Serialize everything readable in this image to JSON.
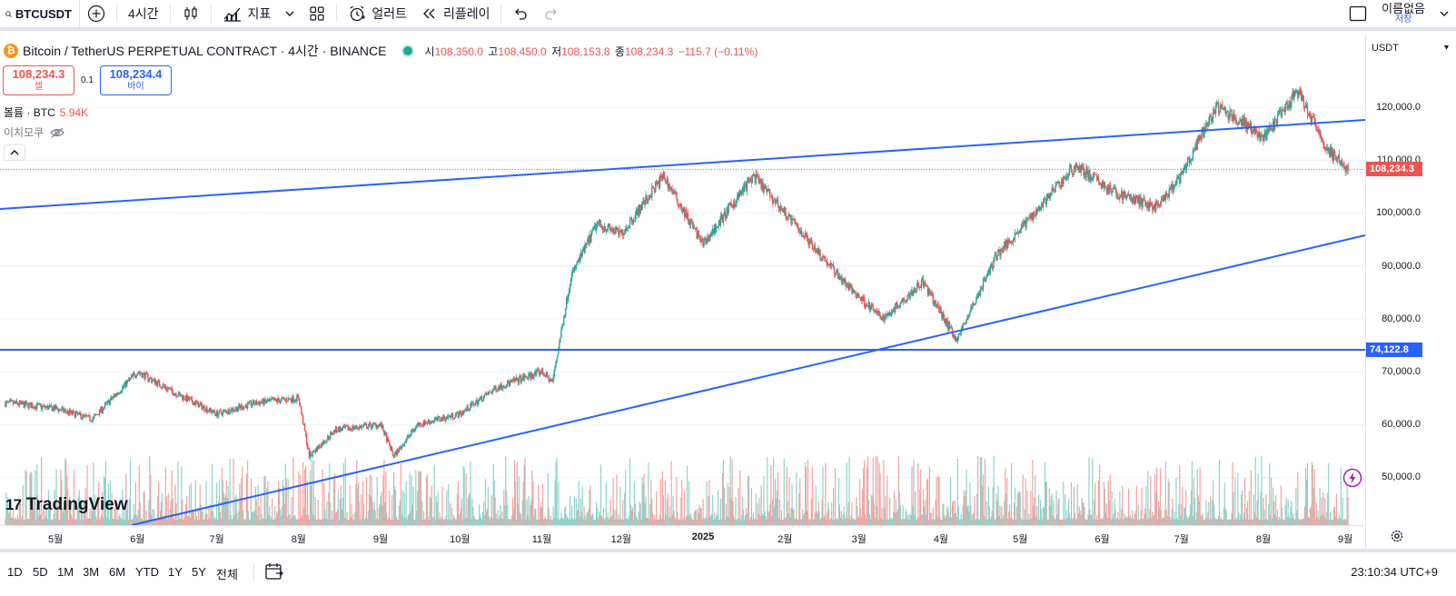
{
  "toolbar": {
    "symbol": "BTCUSDT",
    "interval": "4시간",
    "indicators": "지표",
    "alert": "얼러트",
    "replay": "리플레이",
    "layout_name": "이름없음",
    "save": "저장"
  },
  "header": {
    "title": "Bitcoin / TetherUS PERPETUAL CONTRACT · 4시간 · BINANCE",
    "open_label": "시",
    "open": "108,350.0",
    "high_label": "고",
    "high": "108,450.0",
    "low_label": "저",
    "low": "108,153.8",
    "close_label": "종",
    "close": "108,234.3",
    "change": "−115.7 (−0.11%)"
  },
  "trade": {
    "sell_price": "108,234.3",
    "sell_label": "셀",
    "spread": "0.1",
    "buy_price": "108,234.4",
    "buy_label": "바이"
  },
  "volume_legend": {
    "label": "볼륨 · BTC",
    "value": "5.94K"
  },
  "ichimoku_label": "이치모쿠",
  "logo_text": "TradingView",
  "price_axis": {
    "unit": "USDT",
    "ticks": [
      "120,000.0",
      "110,000.0",
      "100,000.0",
      "90,000.0",
      "80,000.0",
      "70,000.0",
      "60,000.0",
      "50,000.0"
    ],
    "last_price_tag": "108,234.3",
    "line_price_tag": "74,122.8"
  },
  "time_axis": {
    "ticks": [
      "5월",
      "6월",
      "7월",
      "8월",
      "9월",
      "10월",
      "11월",
      "12월",
      "2025",
      "2월",
      "3월",
      "4월",
      "5월",
      "6월",
      "7월",
      "8월",
      "9월"
    ]
  },
  "bottom_bar": {
    "ranges": [
      "1D",
      "5D",
      "1M",
      "3M",
      "6M",
      "YTD",
      "1Y",
      "5Y",
      "전체"
    ],
    "clock": "23:10:34 UTC+9"
  },
  "colors": {
    "up": "#26a69a",
    "down": "#ef5350",
    "trendline": "#2962ff",
    "up_volume": "#8fd3cb",
    "down_volume": "#f4a3a1"
  },
  "chart_data": {
    "type": "candlestick",
    "series_name": "BTCUSDT",
    "interval": "4시간",
    "ylim": [
      40000,
      127000
    ],
    "last_price": 108234.3,
    "horizontal_line": 74122.8,
    "x": [
      "2024-04-15",
      "2024-05-01",
      "2024-05-15",
      "2024-06-01",
      "2024-06-15",
      "2024-07-01",
      "2024-07-15",
      "2024-08-01",
      "2024-08-05",
      "2024-08-15",
      "2024-09-01",
      "2024-09-06",
      "2024-09-15",
      "2024-10-01",
      "2024-10-15",
      "2024-11-01",
      "2024-11-05",
      "2024-11-12",
      "2024-11-22",
      "2024-12-01",
      "2024-12-17",
      "2025-01-01",
      "2025-01-20",
      "2025-02-01",
      "2025-02-25",
      "2025-03-10",
      "2025-03-25",
      "2025-04-07",
      "2025-04-22",
      "2025-05-01",
      "2025-05-22",
      "2025-06-05",
      "2025-06-22",
      "2025-07-01",
      "2025-07-14",
      "2025-07-25",
      "2025-08-01",
      "2025-08-14",
      "2025-08-25",
      "2025-09-02"
    ],
    "y": [
      64000,
      63000,
      61000,
      70000,
      66000,
      62000,
      64000,
      65000,
      54000,
      59000,
      60000,
      54000,
      60000,
      62000,
      67000,
      70000,
      68000,
      88000,
      98000,
      96000,
      107000,
      94000,
      107000,
      100000,
      86000,
      80000,
      87000,
      76000,
      92000,
      97000,
      109000,
      104000,
      101000,
      107000,
      120000,
      117000,
      114000,
      123000,
      112000,
      108234
    ]
  }
}
